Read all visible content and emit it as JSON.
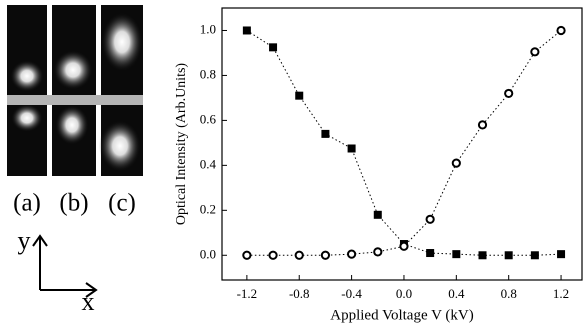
{
  "panel_labels": [
    "(a)",
    "(b)",
    "(c)"
  ],
  "arrow_labels": {
    "y": "y",
    "x": "x"
  },
  "chart_data": {
    "type": "scatter",
    "x_label": "Applied Voltage V (kV)",
    "y_label": "Optical Intensity (Arb.Units)",
    "x": [
      -1.2,
      -1.0,
      -0.8,
      -0.6,
      -0.4,
      -0.2,
      0,
      0.2,
      0.4,
      0.6,
      0.8,
      1.0,
      1.2
    ],
    "series": [
      {
        "color": "#000000",
        "marker": "square",
        "values": [
          1.0,
          0.925,
          0.71,
          0.54,
          0.475,
          0.18,
          0.05,
          0.01,
          0.005,
          0.0,
          0.0,
          0.0,
          0.005
        ]
      },
      {
        "color": "#000000",
        "marker": "circle",
        "values": [
          0.0,
          0.0,
          0.0,
          0.0,
          0.005,
          0.015,
          0.04,
          0.16,
          0.41,
          0.58,
          0.72,
          0.905,
          1.0
        ]
      }
    ],
    "line_style": "dotted",
    "xlim": [
      -1.39,
      1.36
    ],
    "ylim": [
      -0.11,
      1.1
    ],
    "xticks": [
      -1.2,
      -0.8,
      -0.4,
      {
        "value": 0,
        "label": "0.0"
      },
      0.4,
      0.8,
      1.2
    ],
    "yticks": [
      {
        "value": 0,
        "label": "0.0"
      },
      0.2,
      0.4,
      0.6,
      0.8,
      {
        "value": 1,
        "label": "1.0"
      }
    ]
  }
}
